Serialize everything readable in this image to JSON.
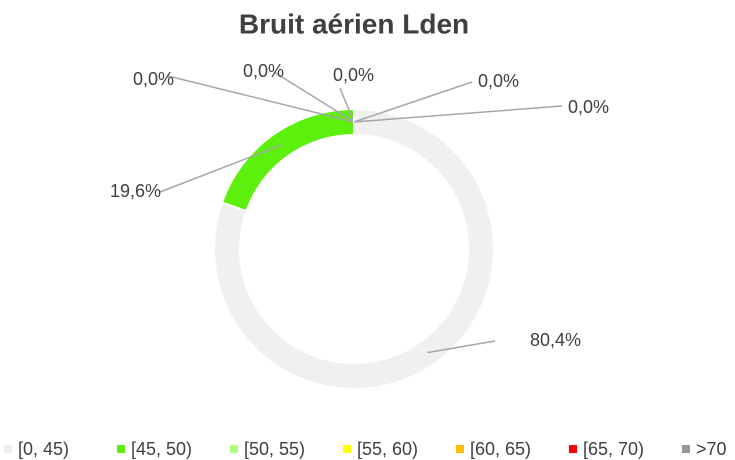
{
  "chart_data": {
    "type": "donut",
    "title": "Bruit aérien Lden",
    "categories": [
      "[0, 45)",
      "[45, 50)",
      "[50, 55)",
      "[55, 60)",
      "[60, 65)",
      "[65, 70)",
      ">70"
    ],
    "values": [
      80.4,
      19.6,
      0,
      0,
      0,
      0,
      0
    ],
    "value_labels": [
      "80,4%",
      "19,6%",
      "0,0%",
      "0,0%",
      "0,0%",
      "0,0%",
      "0,0%"
    ],
    "colors": [
      "#f0f0f0",
      "#5cf00c",
      "#b3ff80",
      "#ffff00",
      "#ffc000",
      "#ff0000",
      "#999999"
    ],
    "legend": "bottom"
  }
}
